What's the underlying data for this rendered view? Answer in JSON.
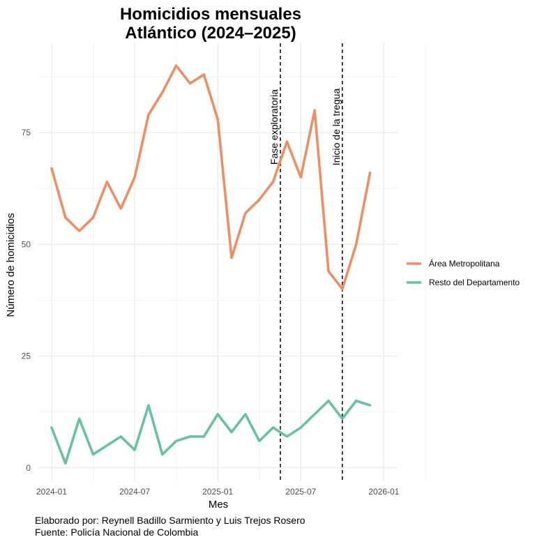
{
  "chart_data": {
    "type": "line",
    "title_lines": [
      "Homicidios mensuales",
      "Atlántico (2024–2025)"
    ],
    "xlabel": "Mes",
    "ylabel": "Número de homicidios",
    "ylim": [
      -3,
      95
    ],
    "y_ticks": [
      0,
      25,
      50,
      75
    ],
    "x_ticks": [
      "2024-01",
      "2024-07",
      "2025-01",
      "2025-07",
      "2026-01"
    ],
    "x": [
      "2024-01",
      "2024-02",
      "2024-03",
      "2024-04",
      "2024-05",
      "2024-06",
      "2024-07",
      "2024-08",
      "2024-09",
      "2024-10",
      "2024-11",
      "2024-12",
      "2025-01",
      "2025-02",
      "2025-03",
      "2025-04",
      "2025-05",
      "2025-06",
      "2025-07",
      "2025-08",
      "2025-09",
      "2025-10",
      "2025-11",
      "2025-12"
    ],
    "series": [
      {
        "name": "Área Metropolitana",
        "color": "#ee8e64",
        "values": [
          67,
          56,
          53,
          56,
          64,
          58,
          65,
          79,
          84,
          90,
          86,
          88,
          78,
          47,
          57,
          60,
          64,
          73,
          65,
          80,
          44,
          40,
          50,
          66
        ]
      },
      {
        "name": "Resto del Departamento",
        "color": "#66c2a5",
        "values": [
          9,
          1,
          11,
          3,
          5,
          7,
          4,
          14,
          3,
          6,
          7,
          7,
          12,
          8,
          12,
          6,
          9,
          7,
          9,
          12,
          15,
          11,
          15,
          14
        ]
      }
    ],
    "annotations": [
      {
        "date": "2025-05-17",
        "label": "Fase exploratoria"
      },
      {
        "date": "2025-10-01",
        "label": "Inicio de la tregua"
      }
    ],
    "legend_position": "right",
    "grid": true,
    "caption_lines": [
      "Elaborado por: Reynell Badillo Sarmiento y Luis Trejos Rosero",
      "Fuente: Policía Nacional de Colombia"
    ]
  }
}
